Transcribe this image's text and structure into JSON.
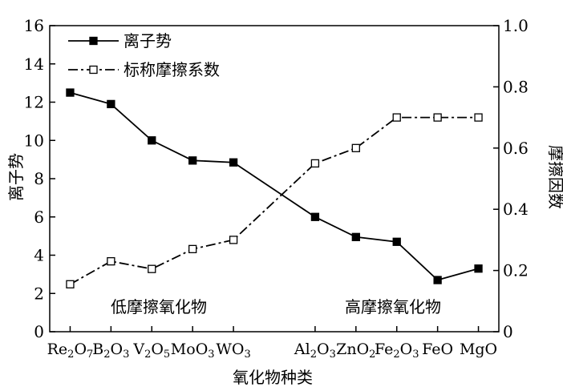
{
  "chart_data": {
    "type": "line",
    "xlabel": "氧化物种类",
    "ylabel_left": "离子势",
    "ylabel_right": "摩擦因数",
    "ylim_left": [
      0,
      16
    ],
    "ylim_right": [
      0,
      1.0
    ],
    "yticks_left": [
      "0",
      "2",
      "4",
      "6",
      "8",
      "10",
      "12",
      "14",
      "16"
    ],
    "yticks_right": [
      "0",
      "0.2",
      "0.4",
      "0.6",
      "0.8",
      "1.0"
    ],
    "categories": [
      {
        "base": "Re",
        "sub1": "2",
        "mid": "O",
        "sub2": "7"
      },
      {
        "base": "B",
        "sub1": "2",
        "mid": "O",
        "sub2": "3"
      },
      {
        "base": "V",
        "sub1": "2",
        "mid": "O",
        "sub2": "5"
      },
      {
        "base": "MoO",
        "sub1": "3",
        "mid": "",
        "sub2": ""
      },
      {
        "base": "WO",
        "sub1": "3",
        "mid": "",
        "sub2": ""
      },
      {
        "base": "Al",
        "sub1": "2",
        "mid": "O",
        "sub2": "3"
      },
      {
        "base": "ZnO",
        "sub1": "2",
        "mid": "",
        "sub2": ""
      },
      {
        "base": "Fe",
        "sub1": "2",
        "mid": "O",
        "sub2": "3"
      },
      {
        "base": "FeO",
        "sub1": "",
        "mid": "",
        "sub2": ""
      },
      {
        "base": "MgO",
        "sub1": "",
        "mid": "",
        "sub2": ""
      }
    ],
    "x_slot_index": [
      0,
      1,
      2,
      3,
      4,
      6,
      7,
      8,
      9,
      10
    ],
    "x_slot_count": 11,
    "series": [
      {
        "name": "离子势",
        "axis": "left",
        "marker": "filled-square",
        "line_style": "solid",
        "values": [
          12.5,
          11.9,
          10.0,
          8.95,
          8.85,
          6.0,
          4.95,
          4.7,
          2.7,
          3.3
        ]
      },
      {
        "name": "标称摩擦系数",
        "axis": "right",
        "marker": "open-square",
        "line_style": "dash-dot",
        "values": [
          0.155,
          0.23,
          0.205,
          0.27,
          0.3,
          0.55,
          0.6,
          0.7,
          0.7,
          0.7
        ]
      }
    ],
    "annotations": [
      "低摩擦氧化物",
      "高摩擦氧化物"
    ],
    "legend_position": "top-left",
    "grid": false
  }
}
